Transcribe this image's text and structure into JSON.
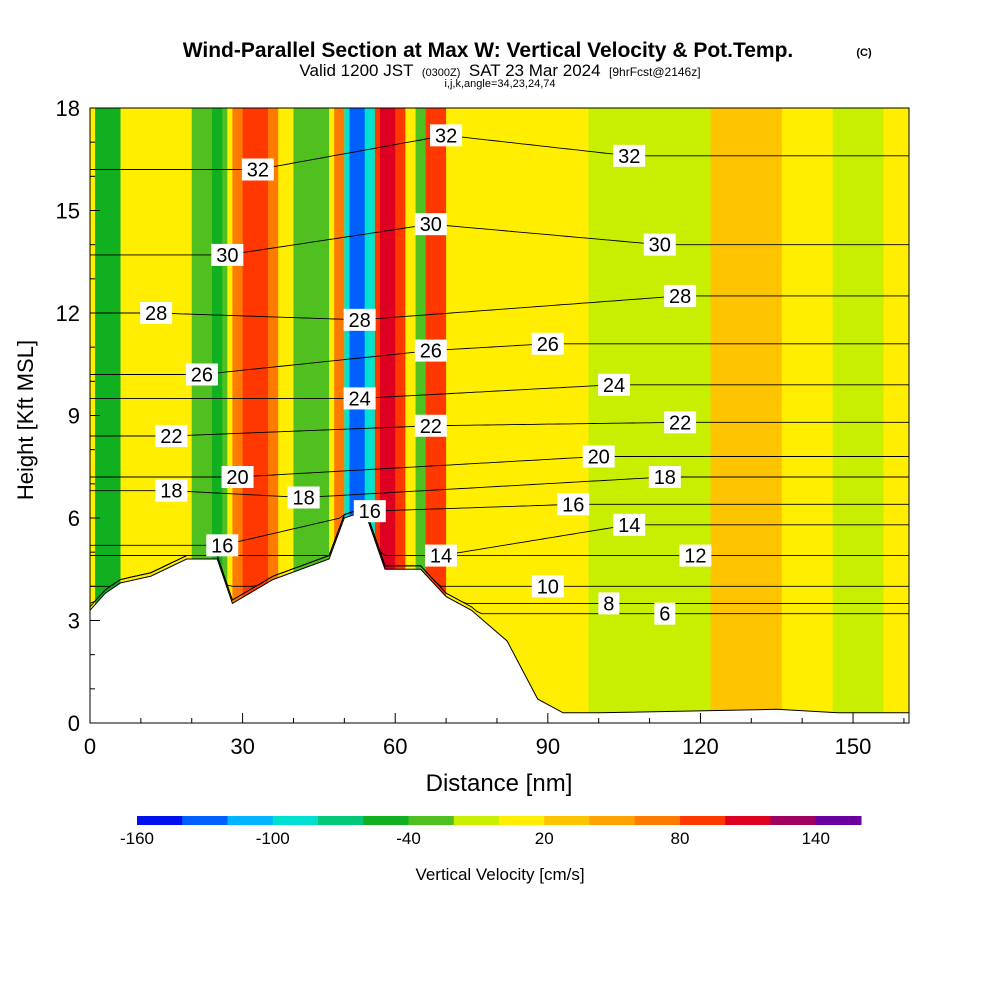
{
  "header": {
    "title": "Wind-Parallel Section at Max W: Vertical Velocity & Pot.Temp.",
    "title_mark": "(C)",
    "valid_prefix": "Valid 1200 JST",
    "valid_z": "(0300Z)",
    "valid_date": "SAT 23 Mar 2024",
    "valid_fcst": "[9hrFcst@2146z]",
    "ijk": "i,j,k,angle=34,23,24,74"
  },
  "chart_data": {
    "type": "heatmap",
    "xlabel": "Distance [nm]",
    "ylabel": "Height [Kft MSL]",
    "xlim": [
      0,
      161
    ],
    "ylim": [
      0,
      18
    ],
    "x_ticks": [
      0,
      30,
      60,
      90,
      120,
      150
    ],
    "y_ticks": [
      0,
      3,
      6,
      9,
      12,
      15,
      18
    ],
    "colorbar": {
      "label": "Vertical Velocity [cm/s]",
      "tick_labels": [
        "-160",
        "-100",
        "-40",
        "20",
        "80",
        "140"
      ],
      "tick_values": [
        -160,
        -100,
        -40,
        20,
        80,
        140
      ],
      "range": [
        -160,
        160
      ],
      "colors": [
        "#0010ee",
        "#0060ff",
        "#00b4ff",
        "#00e0d0",
        "#00c878",
        "#10b020",
        "#50c020",
        "#c8ee00",
        "#ffee00",
        "#ffc400",
        "#ffa200",
        "#ff7a00",
        "#ff3800",
        "#dd0020",
        "#a00060",
        "#6a00a0"
      ]
    },
    "terrain": [
      [
        0,
        3.3
      ],
      [
        3,
        3.8
      ],
      [
        6,
        4.1
      ],
      [
        12,
        4.3
      ],
      [
        19,
        4.8
      ],
      [
        25,
        4.8
      ],
      [
        28,
        3.5
      ],
      [
        36,
        4.2
      ],
      [
        47,
        4.8
      ],
      [
        50,
        6.0
      ],
      [
        54,
        6.2
      ],
      [
        58,
        4.5
      ],
      [
        65,
        4.5
      ],
      [
        70,
        3.7
      ],
      [
        75,
        3.3
      ],
      [
        82,
        2.4
      ],
      [
        88,
        0.7
      ],
      [
        93,
        0.3
      ],
      [
        100,
        0.3
      ],
      [
        135,
        0.4
      ],
      [
        147,
        0.3
      ],
      [
        161,
        0.3
      ]
    ],
    "w_bands": [
      {
        "x0": 1,
        "x1": 6,
        "w": -50
      },
      {
        "x0": 20,
        "x1": 27,
        "w": -40
      },
      {
        "x0": 24,
        "x1": 26,
        "w": -60
      },
      {
        "x0": 28,
        "x1": 37,
        "w": 70
      },
      {
        "x0": 30,
        "x1": 35,
        "w": 90
      },
      {
        "x0": 40,
        "x1": 47,
        "w": -30
      },
      {
        "x0": 48,
        "x1": 50,
        "w": 60
      },
      {
        "x0": 50,
        "x1": 56,
        "w": -90
      },
      {
        "x0": 51,
        "x1": 54,
        "w": -140
      },
      {
        "x0": 56,
        "x1": 62,
        "w": 80
      },
      {
        "x0": 57,
        "x1": 60,
        "w": 110
      },
      {
        "x0": 64,
        "x1": 68,
        "w": -40
      },
      {
        "x0": 66,
        "x1": 70,
        "w": 80
      },
      {
        "x0": 98,
        "x1": 126,
        "w": -15
      },
      {
        "x0": 122,
        "x1": 136,
        "w": 35
      },
      {
        "x0": 146,
        "x1": 156,
        "w": -20
      }
    ],
    "theta_contour_labels": [
      {
        "x": 33,
        "y": 16.2,
        "text": "32"
      },
      {
        "x": 70,
        "y": 17.2,
        "text": "32"
      },
      {
        "x": 106,
        "y": 16.6,
        "text": "32"
      },
      {
        "x": 27,
        "y": 13.7,
        "text": "30"
      },
      {
        "x": 67,
        "y": 14.6,
        "text": "30"
      },
      {
        "x": 112,
        "y": 14.0,
        "text": "30"
      },
      {
        "x": 13,
        "y": 12.0,
        "text": "28"
      },
      {
        "x": 53,
        "y": 11.8,
        "text": "28"
      },
      {
        "x": 116,
        "y": 12.5,
        "text": "28"
      },
      {
        "x": 22,
        "y": 10.2,
        "text": "26"
      },
      {
        "x": 67,
        "y": 10.9,
        "text": "26"
      },
      {
        "x": 90,
        "y": 11.1,
        "text": "26"
      },
      {
        "x": 53,
        "y": 9.5,
        "text": "24"
      },
      {
        "x": 103,
        "y": 9.9,
        "text": "24"
      },
      {
        "x": 16,
        "y": 8.4,
        "text": "22"
      },
      {
        "x": 67,
        "y": 8.7,
        "text": "22"
      },
      {
        "x": 116,
        "y": 8.8,
        "text": "22"
      },
      {
        "x": 29,
        "y": 7.2,
        "text": "20"
      },
      {
        "x": 100,
        "y": 7.8,
        "text": "20"
      },
      {
        "x": 16,
        "y": 6.8,
        "text": "18"
      },
      {
        "x": 42,
        "y": 6.6,
        "text": "18"
      },
      {
        "x": 113,
        "y": 7.2,
        "text": "18"
      },
      {
        "x": 26,
        "y": 5.2,
        "text": "16"
      },
      {
        "x": 55,
        "y": 6.2,
        "text": "16"
      },
      {
        "x": 95,
        "y": 6.4,
        "text": "16"
      },
      {
        "x": 69,
        "y": 4.9,
        "text": "14"
      },
      {
        "x": 106,
        "y": 5.8,
        "text": "14"
      },
      {
        "x": 119,
        "y": 4.9,
        "text": "12"
      },
      {
        "x": 90,
        "y": 4.0,
        "text": "10"
      },
      {
        "x": 102,
        "y": 3.5,
        "text": "8"
      },
      {
        "x": 113,
        "y": 3.2,
        "text": "6"
      }
    ]
  }
}
